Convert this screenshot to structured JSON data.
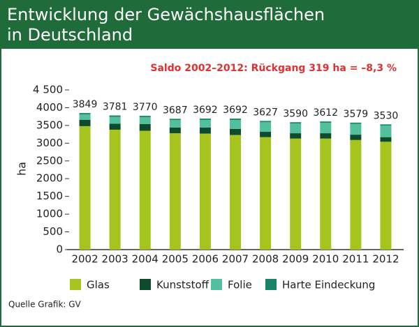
{
  "chart_data": {
    "type": "stacked_bar",
    "title": "Entwicklung der Gewächshausflächen in Deutschland",
    "subtitle": "Saldo 2002–2012: Rückgang 319 ha = –8,3 %",
    "y_label": "ha",
    "source": "Quelle Grafik: GV",
    "categories": [
      "2002",
      "2003",
      "2004",
      "2005",
      "2006",
      "2007",
      "2008",
      "2009",
      "2010",
      "2011",
      "2012"
    ],
    "series": [
      {
        "name": "Glas",
        "color": "#a6c41e",
        "values": [
          3480,
          3380,
          3350,
          3280,
          3270,
          3230,
          3170,
          3130,
          3130,
          3090,
          3040
        ]
      },
      {
        "name": "Kunststoff",
        "color": "#0e4a2c",
        "values": [
          180,
          170,
          190,
          160,
          170,
          170,
          150,
          150,
          150,
          150,
          130
        ]
      },
      {
        "name": "Folie",
        "color": "#52c09c",
        "values": [
          150,
          190,
          190,
          210,
          215,
          255,
          270,
          275,
          297,
          305,
          327
        ]
      },
      {
        "name": "Harte Eindeckung",
        "color": "#168565",
        "values": [
          39,
          41,
          40,
          37,
          37,
          37,
          37,
          35,
          35,
          34,
          33
        ]
      }
    ],
    "totals": [
      3849,
      3781,
      3770,
      3687,
      3692,
      3692,
      3627,
      3590,
      3612,
      3579,
      3530
    ],
    "ylim": [
      0,
      4500
    ],
    "yticks": [
      0,
      500,
      1000,
      1500,
      2000,
      2500,
      3000,
      3500,
      4000,
      {
        "value": 4500,
        "label": "4 500"
      }
    ],
    "legend": "bottom"
  }
}
